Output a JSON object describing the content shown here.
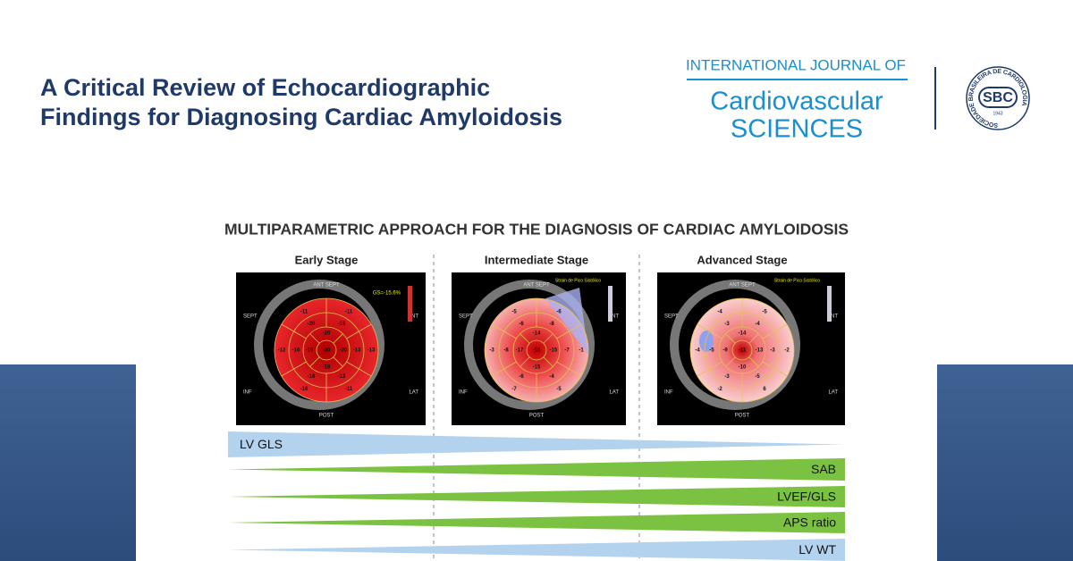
{
  "header": {
    "title_lines": [
      "A Critical Review of Echocardiographic",
      "Findings for Diagnosing Cardiac Amyloidosis"
    ]
  },
  "journal": {
    "line1": "INTERNATIONAL JOURNAL OF",
    "line2": "Cardiovascular",
    "line3": "SCIENCES"
  },
  "seal": {
    "abbr": "SBC",
    "ring_text": "SOCIEDADE BRASILEIRA DE CARDIOLOGIA",
    "year": "1943"
  },
  "figure": {
    "title": "MULTIPARAMETRIC APPROACH FOR THE DIAGNOSIS OF CARDIAC AMYLOIDOSIS",
    "orientation": {
      "top": "ANT SEPT",
      "left": "SEPT",
      "right": "ANT",
      "bottom_left": "INF",
      "bottom_right": "LAT",
      "bottom": "POST"
    },
    "stages": [
      {
        "name": "Early Stage",
        "caption": "GS=-15.6%",
        "segments": [
          -11,
          -13,
          -11,
          -16,
          -12,
          -11,
          -15,
          -13,
          -13,
          -16,
          -16,
          -20,
          -20,
          -20,
          -18,
          -19,
          -30
        ]
      },
      {
        "name": "Intermediate Stage",
        "caption": "Strain de Pico Sistólico",
        "segments": [
          -6,
          -1,
          -5,
          -7,
          -3,
          -5,
          -8,
          -7,
          -4,
          -6,
          -8,
          -6,
          -14,
          -15,
          -15,
          -17,
          -18
        ]
      },
      {
        "name": "Advanced Stage",
        "caption": "Strain de Pico Sistólico",
        "segments": [
          -5,
          -2,
          6,
          -2,
          -4,
          -4,
          -4,
          -3,
          -5,
          -3,
          -5,
          -3,
          -14,
          -13,
          -10,
          -9,
          -11
        ]
      }
    ],
    "bars": [
      {
        "label": "LV GLS"
      },
      {
        "label": "SAB"
      },
      {
        "label": "LVEF/GLS"
      },
      {
        "label": "APS ratio"
      },
      {
        "label": "LV WT"
      }
    ]
  }
}
